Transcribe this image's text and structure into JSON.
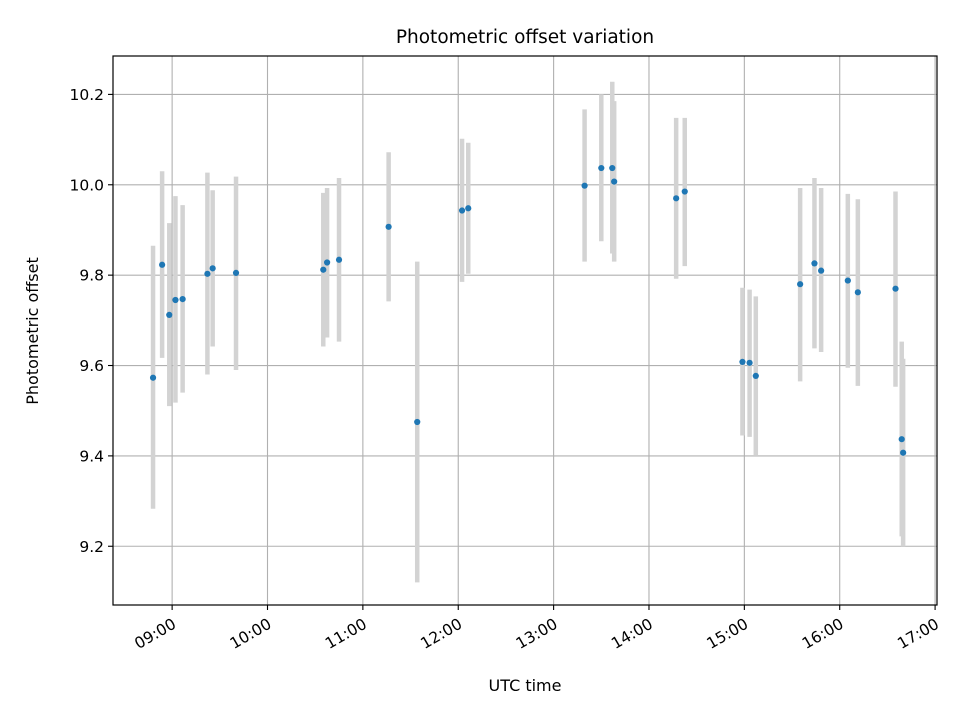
{
  "chart_data": {
    "type": "scatter",
    "title": "Photometric offset variation",
    "xlabel": "UTC time",
    "ylabel": "Photometric offset",
    "x_unit": "hours (UTC)",
    "xlim": [
      8.38,
      17.02
    ],
    "ylim": [
      9.07,
      10.285
    ],
    "grid": true,
    "x_ticks": [
      {
        "value": 9,
        "label": "09:00"
      },
      {
        "value": 10,
        "label": "10:00"
      },
      {
        "value": 11,
        "label": "11:00"
      },
      {
        "value": 12,
        "label": "12:00"
      },
      {
        "value": 13,
        "label": "13:00"
      },
      {
        "value": 14,
        "label": "14:00"
      },
      {
        "value": 15,
        "label": "15:00"
      },
      {
        "value": 16,
        "label": "16:00"
      },
      {
        "value": 17,
        "label": "17:00"
      }
    ],
    "y_ticks": [
      {
        "value": 9.2,
        "label": "9.2"
      },
      {
        "value": 9.4,
        "label": "9.4"
      },
      {
        "value": 9.6,
        "label": "9.6"
      },
      {
        "value": 9.8,
        "label": "9.8"
      },
      {
        "value": 10.0,
        "label": "10.0"
      },
      {
        "value": 10.2,
        "label": "10.2"
      }
    ],
    "point_color": "#1f77b4",
    "errorbar_color": "#d3d3d3",
    "points": [
      {
        "t": "08:48",
        "x": 8.8,
        "y": 9.573,
        "lo": 9.283,
        "hi": 9.865
      },
      {
        "t": "08:53",
        "x": 8.895,
        "y": 9.823,
        "lo": 9.617,
        "hi": 10.03
      },
      {
        "t": "08:58",
        "x": 8.97,
        "y": 9.712,
        "lo": 9.51,
        "hi": 9.915
      },
      {
        "t": "09:02",
        "x": 9.035,
        "y": 9.745,
        "lo": 9.518,
        "hi": 9.975
      },
      {
        "t": "09:07",
        "x": 9.11,
        "y": 9.747,
        "lo": 9.54,
        "hi": 9.955
      },
      {
        "t": "09:22",
        "x": 9.37,
        "y": 9.803,
        "lo": 9.58,
        "hi": 10.027
      },
      {
        "t": "09:25",
        "x": 9.425,
        "y": 9.815,
        "lo": 9.642,
        "hi": 9.988
      },
      {
        "t": "09:40",
        "x": 9.67,
        "y": 9.805,
        "lo": 9.59,
        "hi": 10.018
      },
      {
        "t": "10:35",
        "x": 10.585,
        "y": 9.812,
        "lo": 9.642,
        "hi": 9.982
      },
      {
        "t": "10:37",
        "x": 10.625,
        "y": 9.828,
        "lo": 9.662,
        "hi": 9.993
      },
      {
        "t": "10:45",
        "x": 10.75,
        "y": 9.834,
        "lo": 9.653,
        "hi": 10.015
      },
      {
        "t": "11:16",
        "x": 11.27,
        "y": 9.907,
        "lo": 9.742,
        "hi": 10.072
      },
      {
        "t": "11:34",
        "x": 11.57,
        "y": 9.475,
        "lo": 9.12,
        "hi": 9.83
      },
      {
        "t": "12:02",
        "x": 12.04,
        "y": 9.943,
        "lo": 9.785,
        "hi": 10.102
      },
      {
        "t": "12:06",
        "x": 12.105,
        "y": 9.948,
        "lo": 9.803,
        "hi": 10.093
      },
      {
        "t": "13:19",
        "x": 13.325,
        "y": 9.998,
        "lo": 9.83,
        "hi": 10.167
      },
      {
        "t": "13:29",
        "x": 13.5,
        "y": 10.037,
        "lo": 9.875,
        "hi": 10.2
      },
      {
        "t": "13:37",
        "x": 13.615,
        "y": 10.037,
        "lo": 9.848,
        "hi": 10.228
      },
      {
        "t": "13:38",
        "x": 13.635,
        "y": 10.007,
        "lo": 9.83,
        "hi": 10.185
      },
      {
        "t": "14:17",
        "x": 14.285,
        "y": 9.97,
        "lo": 9.792,
        "hi": 10.148
      },
      {
        "t": "14:22",
        "x": 14.375,
        "y": 9.985,
        "lo": 9.82,
        "hi": 10.148
      },
      {
        "t": "14:59",
        "x": 14.98,
        "y": 9.608,
        "lo": 9.445,
        "hi": 9.772
      },
      {
        "t": "15:03",
        "x": 15.055,
        "y": 9.606,
        "lo": 9.442,
        "hi": 9.768
      },
      {
        "t": "15:07",
        "x": 15.12,
        "y": 9.577,
        "lo": 9.4,
        "hi": 9.753
      },
      {
        "t": "15:35",
        "x": 15.585,
        "y": 9.78,
        "lo": 9.565,
        "hi": 9.993
      },
      {
        "t": "15:44",
        "x": 15.735,
        "y": 9.826,
        "lo": 9.638,
        "hi": 10.015
      },
      {
        "t": "15:48",
        "x": 15.805,
        "y": 9.81,
        "lo": 9.63,
        "hi": 9.993
      },
      {
        "t": "16:05",
        "x": 16.085,
        "y": 9.788,
        "lo": 9.595,
        "hi": 9.98
      },
      {
        "t": "16:11",
        "x": 16.19,
        "y": 9.762,
        "lo": 9.555,
        "hi": 9.968
      },
      {
        "t": "16:35",
        "x": 16.585,
        "y": 9.77,
        "lo": 9.553,
        "hi": 9.985
      },
      {
        "t": "16:39",
        "x": 16.65,
        "y": 9.437,
        "lo": 9.222,
        "hi": 9.653
      },
      {
        "t": "16:40",
        "x": 16.665,
        "y": 9.407,
        "lo": 9.2,
        "hi": 9.615
      }
    ]
  }
}
